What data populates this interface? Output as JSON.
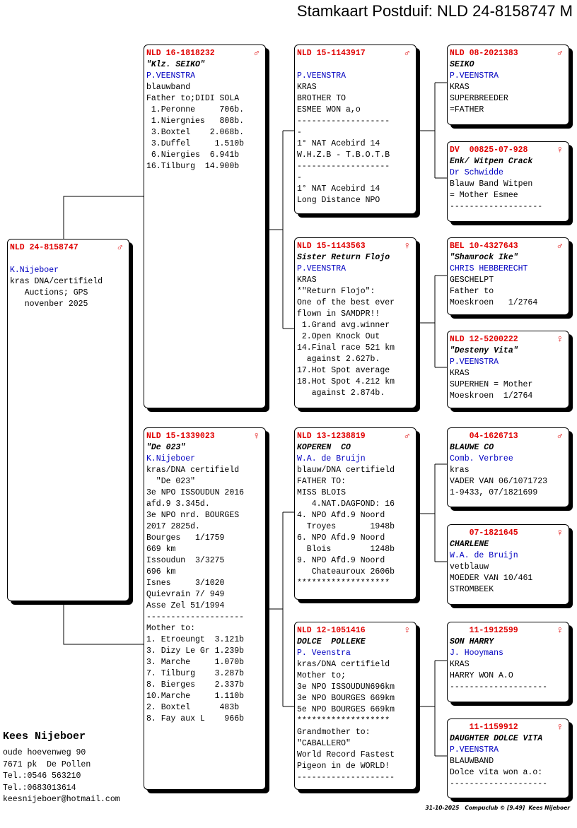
{
  "header": {
    "title": "Stamkaart Postduif: NLD 24-8158747 M"
  },
  "birds": [
    {
      "ring": "NLD 24-8158747",
      "sex": "♂",
      "breeder": "K.Nijeboer",
      "notes": [
        "kras DNA/certifield",
        "   Auctions; GPS",
        "   novenber 2025"
      ]
    },
    {
      "ring": "NLD 16-1818232",
      "sex": "♂",
      "name": "\"Klz. SEIKO\"",
      "breeder": "P.VEENSTRA",
      "notes": [
        "blauwband",
        "Father to;DIDI SOLA",
        " 1.Peronne     706b.",
        " 1.Niergnies   808b.",
        " 3.Boxtel    2.068b.",
        " 3.Duffel     1.510b",
        " 6.Niergies  6.941b",
        "16.Tilburg  14.900b"
      ]
    },
    {
      "ring": "NLD 15-1339023",
      "sex": "♀",
      "name": "\"De 023\"",
      "breeder": "K.Nijeboer",
      "notes": [
        "kras/DNA certifield",
        "  \"De 023\"",
        "3e NPO ISSOUDUN 2016",
        "afd.9 3.345d.",
        "3e NPO nrd. BOURGES",
        "2017 2825d.",
        "Bourges   1/1759",
        "669 km",
        "Issoudun  3/3275",
        "696 km",
        "Isnes     3/1020",
        "Quievrain 7/ 949",
        "Asse Zel 51/1994",
        "--------------------",
        "Mother to:",
        "1. Etroeungt  3.121b",
        "3. Dizy Le Gr 1.239b",
        "3. Marche     1.070b",
        "7. Tilburg    3.287b",
        "8. Bierges    2.337b",
        "10.Marche     1.110b",
        "2. Boxtel      483b",
        "8. Fay aux L    966b"
      ]
    },
    {
      "ring": "NLD 15-1143917",
      "sex": "♂",
      "breeder": "P.VEENSTRA",
      "notes": [
        "KRAS",
        "BROTHER TO",
        "ESMEE WON a,o",
        "-------------------",
        "-",
        "1° NAT Acebird 14",
        "W.H.Z.B - T.B.O.T.B",
        "-------------------",
        "-",
        "1° NAT Acebird 14",
        "Long Distance NPO"
      ]
    },
    {
      "ring": "NLD 15-1143563",
      "sex": "♀",
      "name": "Sister Return Flojo",
      "breeder": "P.VEENSTRA",
      "notes": [
        "KRAS",
        "*\"Return Flojo\":",
        "One of the best ever",
        "flown in SAMDPR!!",
        " 1.Grand avg.winner",
        " 2.Open Knock Out",
        "14.Final race 521 km",
        "  against 2.627b.",
        "17.Hot Spot average",
        "18.Hot Spot 4.212 km",
        "   against 2.874b."
      ]
    },
    {
      "ring": "NLD 13-1238819",
      "sex": "♂",
      "name": "KOPEREN  CO",
      "breeder": "W.A. de Bruijn",
      "notes": [
        "blauw/DNA certifield",
        "FATHER TO:",
        "MISS BLOIS",
        "   4.NAT.DAGFOND: 16",
        "4. NPO Afd.9 Noord",
        "  Troyes       1948b",
        "6. NPO Afd.9 Noord",
        "  Blois        1248b",
        "9. NPO Afd.9 Noord",
        "   Chateauroux 2606b",
        "*******************"
      ]
    },
    {
      "ring": "NLD 12-1051416",
      "sex": "♀",
      "name": "DOLCE  POLLEKE",
      "breeder": "P. Veenstra",
      "notes": [
        "kras/DNA certifield",
        "Mother to;",
        "3e NPO ISSOUDUN696km",
        "3e NPO BOURGES 669km",
        "5e NPO BOURGES 669km",
        "*******************",
        "Grandmother to:",
        "\"CABALLERO\"",
        "World Record Fastest",
        "Pigeon in de WORLD!",
        "--------------------"
      ]
    },
    {
      "ring": "NLD 08-2021383",
      "sex": "♂",
      "name": "SEIKO",
      "breeder": "P.VEENSTRA",
      "notes": [
        "KRAS",
        "SUPERBREEDER",
        "=FATHER"
      ]
    },
    {
      "ring": "DV  00825-07-928",
      "sex": "♀",
      "name": "Enk/ Witpen Crack",
      "breeder": "Dr Schwidde",
      "notes": [
        "Blauw Band Witpen",
        "= Mother Esmee",
        "-------------------"
      ]
    },
    {
      "ring": "BEL 10-4327643",
      "sex": "♂",
      "name": "\"Shamrock Ike\"",
      "breeder": "CHRIS HEBBERECHT",
      "notes": [
        "GESCHELPT",
        "Father to",
        "Moeskroen   1/2764"
      ]
    },
    {
      "ring": "NLD 12-5200222",
      "sex": "♀",
      "name": "\"Desteny Vita\"",
      "breeder": "P.VEENSTRA",
      "notes": [
        "KRAS",
        "SUPERHEN = Mother",
        "Moeskroen  1/2764"
      ]
    },
    {
      "ring": "    04-1626713",
      "sex": "♂",
      "name": "BLAUWE CO",
      "breeder": "Comb. Verbree",
      "notes": [
        "kras",
        "VADER VAN 06/1071723",
        "1-9433, 07/1821699"
      ]
    },
    {
      "ring": "    07-1821645",
      "sex": "♀",
      "name": "CHARLENE",
      "breeder": "W.A. de Bruijn",
      "notes": [
        "vetblauw",
        "MOEDER VAN 10/461",
        "STROMBEEK"
      ]
    },
    {
      "ring": "    11-1912599",
      "sex": "♀",
      "name": "SON HARRY",
      "breeder": "J. Hooymans",
      "notes": [
        "KRAS",
        "HARRY WON A.O",
        "--------------------"
      ]
    },
    {
      "ring": "    11-1159912",
      "sex": "♀",
      "name": "DAUGHTER DOLCE VITA",
      "breeder": "P.VEENSTRA",
      "notes": [
        "BLAUWBAND",
        "Dolce vita won a.o:",
        "--------------------"
      ]
    }
  ],
  "footer": {
    "owner": "Kees Nijeboer",
    "contact": [
      "oude hoevenweg 90",
      "7671 pk  De Pollen",
      "Tel.:0546 563210",
      "Tel.:0683013614",
      "keesnijeboer@hotmail.com"
    ],
    "printed": "31-10-2025   Compuclub © [9.49]  Kees Nijeboer"
  }
}
